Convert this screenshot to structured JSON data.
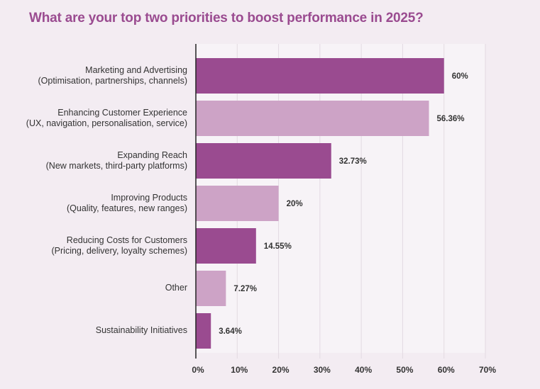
{
  "chart_data": {
    "type": "bar",
    "orientation": "horizontal",
    "title": "What are your top two priorities to boost performance in 2025?",
    "categories": [
      {
        "line1": "Marketing and Advertising",
        "line2": "(Optimisation, partnerships, channels)"
      },
      {
        "line1": "Enhancing Customer Experience",
        "line2": "(UX, navigation, personalisation, service)"
      },
      {
        "line1": "Expanding Reach",
        "line2": "(New markets, third-party platforms)"
      },
      {
        "line1": "Improving Products",
        "line2": "(Quality, features, new ranges)"
      },
      {
        "line1": "Reducing Costs for Customers",
        "line2": "(Pricing, delivery, loyalty schemes)"
      },
      {
        "line1": "Other",
        "line2": ""
      },
      {
        "line1": "Sustainability Initiatives",
        "line2": ""
      }
    ],
    "values": [
      60,
      56.36,
      32.73,
      20,
      14.55,
      7.27,
      3.64
    ],
    "value_labels": [
      "60%",
      "56.36%",
      "32.73%",
      "20%",
      "14.55%",
      "7.27%",
      "3.64%"
    ],
    "xlim": [
      0,
      70
    ],
    "xticks": [
      "0%",
      "10%",
      "20%",
      "30%",
      "40%",
      "50%",
      "60%",
      "70%"
    ],
    "colors": [
      "#9a4b90",
      "#cda3c6"
    ],
    "grid": true
  }
}
